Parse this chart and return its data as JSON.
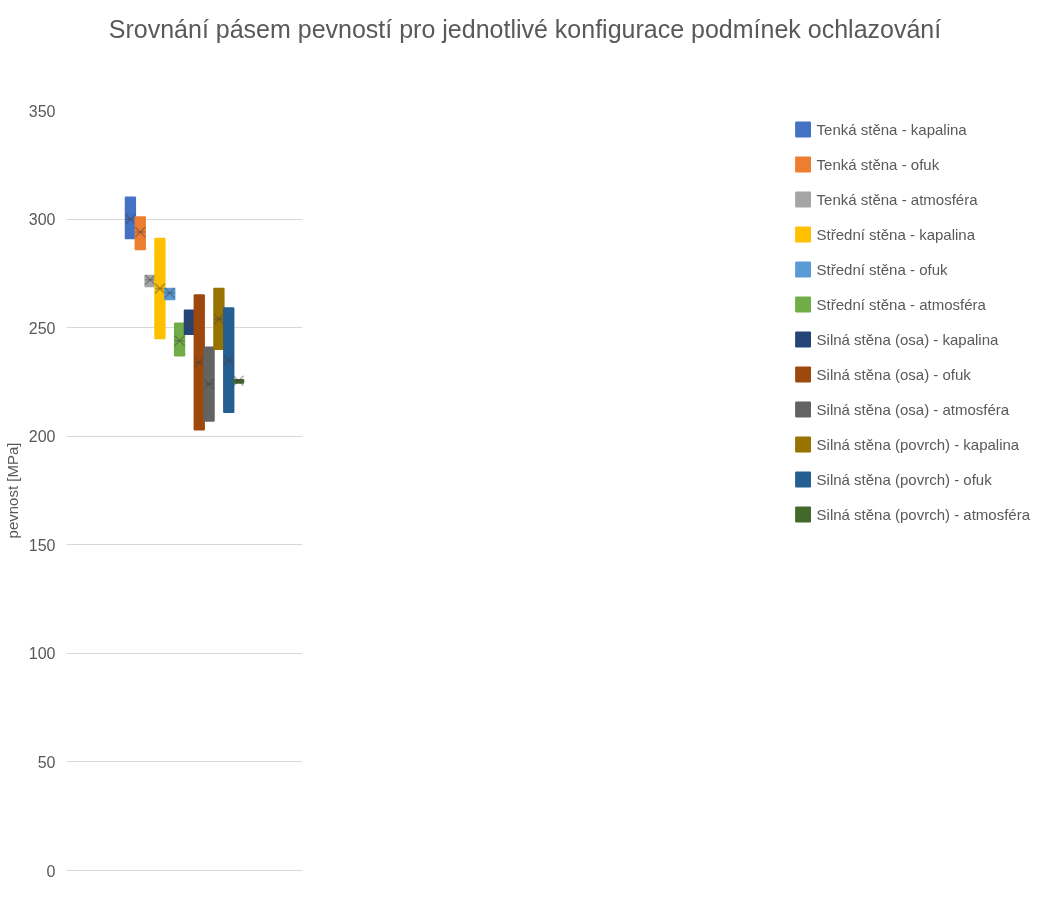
{
  "chart_data": {
    "type": "box",
    "title": "Srovnání pásem pevností pro jednotlivé konfigurace podmínek ochlazování",
    "ylabel": "pevnost [MPa]",
    "categories": [
      null
    ],
    "ylim": [
      0,
      350
    ],
    "yticks": [
      0,
      50,
      100,
      150,
      200,
      250,
      300,
      350
    ],
    "grid": "y",
    "legend": "right",
    "tick_labels": "y",
    "marker": "cross",
    "series": [
      {
        "name": "Tenká stěna - kapalina",
        "color": "#4472c4",
        "boxes": [
          {
            "low": 291,
            "q1": 291,
            "median": 300,
            "q3": 310,
            "high": 310,
            "mean": 300
          }
        ]
      },
      {
        "name": "Tenká stěna - ofuk",
        "color": "#ed7d31",
        "boxes": [
          {
            "low": 286,
            "q1": 286,
            "median": 294,
            "q3": 301,
            "high": 301,
            "mean": 294
          }
        ]
      },
      {
        "name": "Tenká stěna - atmosféra",
        "color": "#a5a5a5",
        "boxes": [
          {
            "low": 269,
            "q1": 269,
            "median": 272,
            "q3": 274,
            "high": 274,
            "mean": 272
          }
        ]
      },
      {
        "name": "Střední stěna - kapalina",
        "color": "#ffc000",
        "boxes": [
          {
            "low": 245,
            "q1": 245,
            "median": 268,
            "q3": 291,
            "high": 291,
            "mean": 268
          }
        ]
      },
      {
        "name": "Střední stěna - ofuk",
        "color": "#5b9bd5",
        "boxes": [
          {
            "low": 263,
            "q1": 263,
            "median": 266,
            "q3": 268,
            "high": 268,
            "mean": 266
          }
        ]
      },
      {
        "name": "Střední stěna - atmosféra",
        "color": "#70ad47",
        "boxes": [
          {
            "low": 237,
            "q1": 237,
            "median": 244,
            "q3": 252,
            "high": 252,
            "mean": 244
          }
        ]
      },
      {
        "name": "Silná stěna (osa) - kapalina",
        "color": "#264478",
        "boxes": [
          {
            "low": 247,
            "q1": 247,
            "median": 252,
            "q3": 258,
            "high": 258,
            "mean": 252
          }
        ]
      },
      {
        "name": "Silná stěna (osa) - ofuk",
        "color": "#9e480e",
        "boxes": [
          {
            "low": 203,
            "q1": 203,
            "median": 234,
            "q3": 265,
            "high": 265,
            "mean": 234
          }
        ]
      },
      {
        "name": "Silná stěna (osa) - atmosféra",
        "color": "#636363",
        "boxes": [
          {
            "low": 207,
            "q1": 207,
            "median": 224,
            "q3": 241,
            "high": 241,
            "mean": 224
          }
        ]
      },
      {
        "name": "Silná stěna (povrch) - kapalina",
        "color": "#997300",
        "boxes": [
          {
            "low": 240,
            "q1": 240,
            "median": 254,
            "q3": 268,
            "high": 268,
            "mean": 254
          }
        ]
      },
      {
        "name": "Silná stěna (povrch) - ofuk",
        "color": "#255e91",
        "boxes": [
          {
            "low": 211,
            "q1": 211,
            "median": 235,
            "q3": 259,
            "high": 259,
            "mean": 235
          }
        ]
      },
      {
        "name": "Silná stěna (povrch) - atmosféra",
        "color": "#43682b",
        "boxes": [
          {
            "low": 224.5,
            "q1": 224.5,
            "median": 225.5,
            "q3": 226,
            "high": 226,
            "mean": 225.5
          }
        ]
      }
    ]
  }
}
